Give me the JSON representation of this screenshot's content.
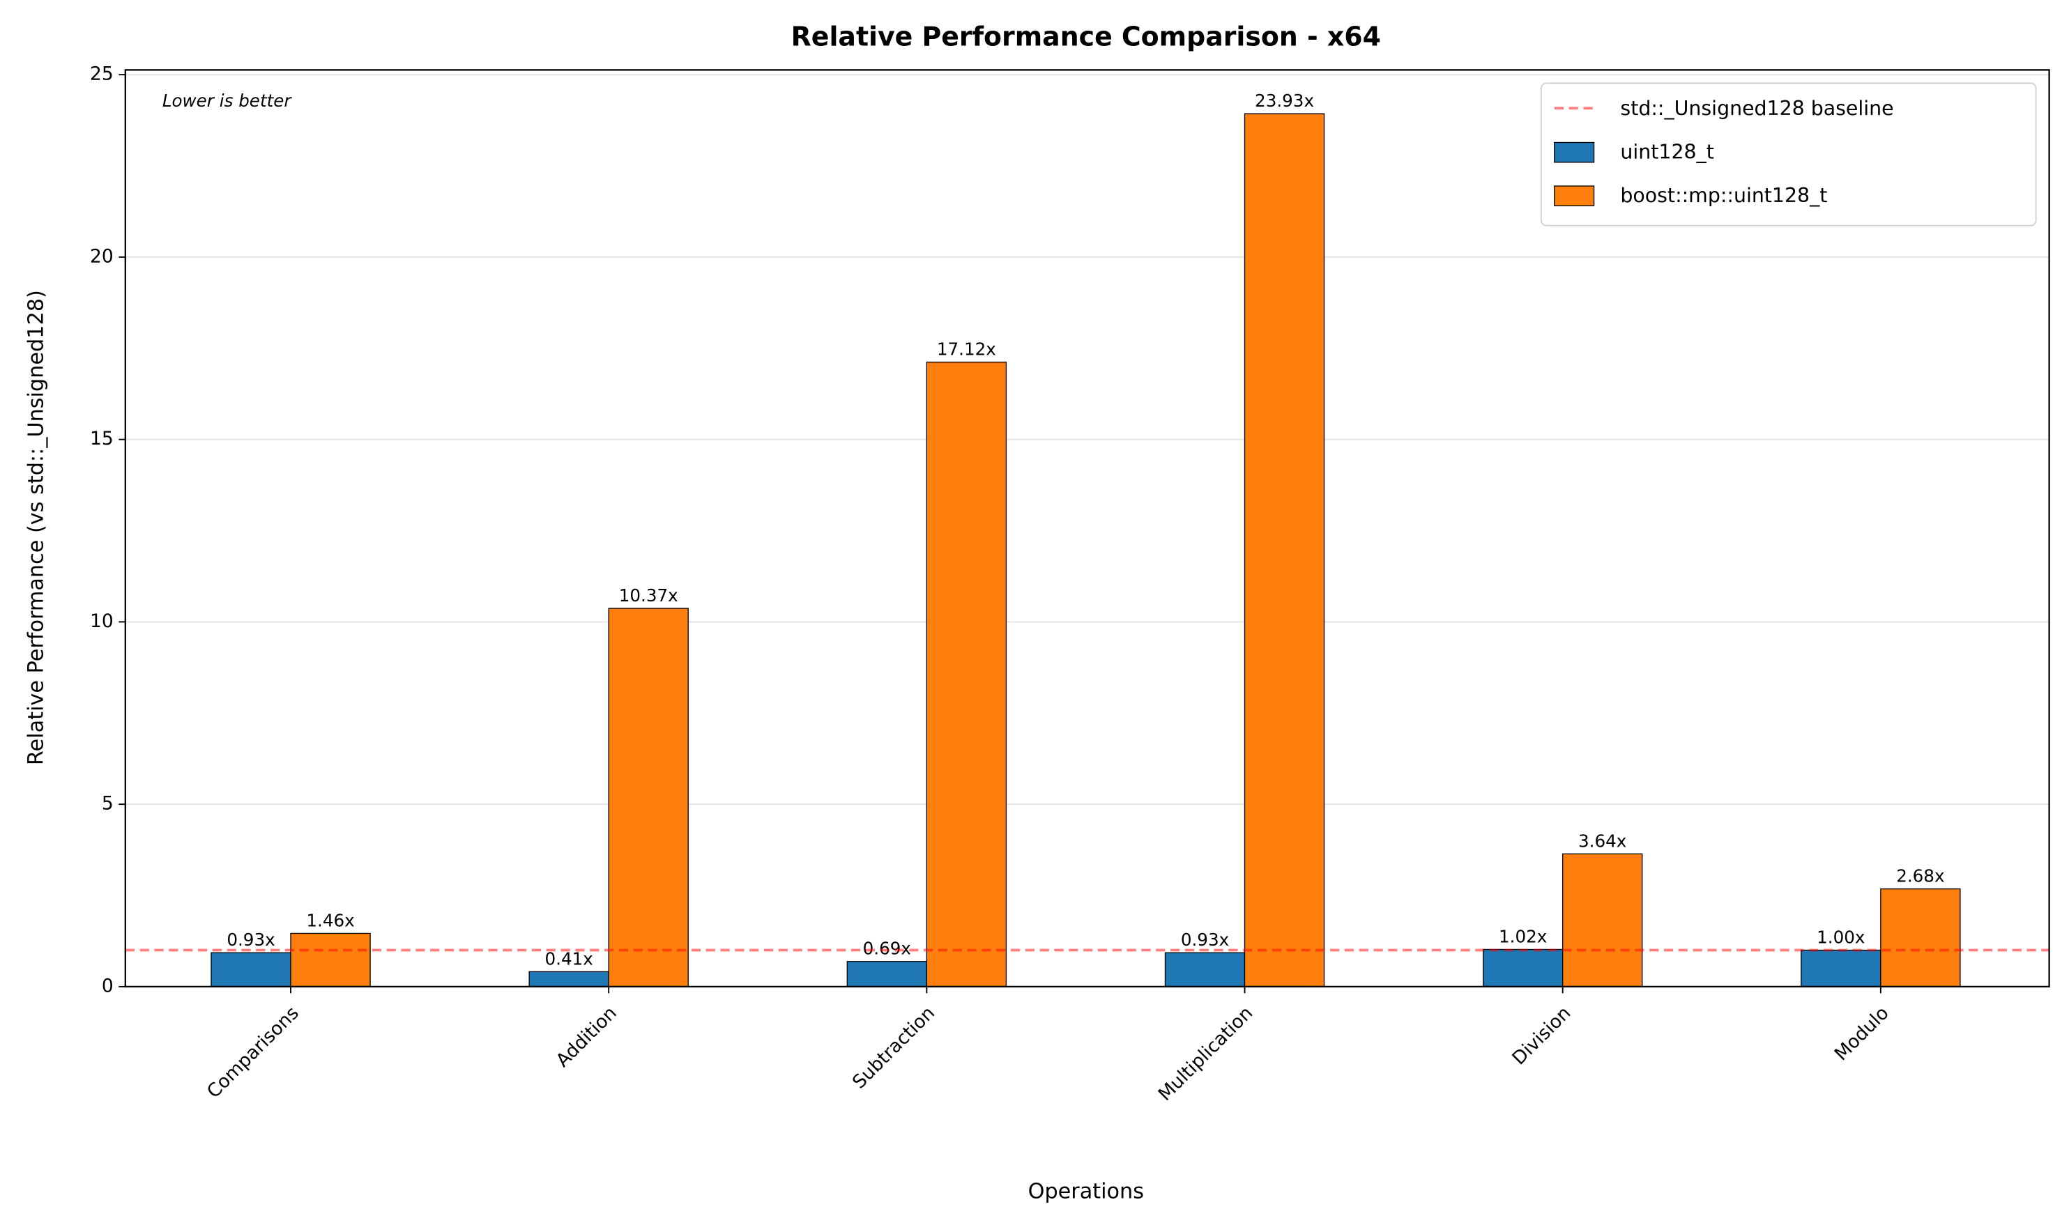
{
  "chart_data": {
    "type": "bar",
    "title": "Relative Performance Comparison - x64",
    "x_label": "Operations",
    "y_label": "Relative Performance (vs std::_Unsigned128)",
    "annotation": "Lower is better",
    "categories": [
      "Comparisons",
      "Addition",
      "Subtraction",
      "Multiplication",
      "Division",
      "Modulo"
    ],
    "series": [
      {
        "name": "uint128_t",
        "color": "#1f77b4",
        "values": [
          0.93,
          0.41,
          0.69,
          0.93,
          1.02,
          1.0
        ],
        "value_labels": [
          "0.93x",
          "0.41x",
          "0.69x",
          "0.93x",
          "1.02x",
          "1.00x"
        ]
      },
      {
        "name": "boost::mp::uint128_t",
        "color": "#ff7f0e",
        "values": [
          1.46,
          10.37,
          17.12,
          23.93,
          3.64,
          2.68
        ],
        "value_labels": [
          "1.46x",
          "10.37x",
          "17.12x",
          "23.93x",
          "3.64x",
          "2.68x"
        ]
      }
    ],
    "reference_line": {
      "name": "std::_Unsigned128 baseline",
      "value": 1,
      "color": "#ff0000"
    },
    "ylim": [
      0,
      25.13
    ],
    "yticks": [
      0,
      5,
      10,
      15,
      20,
      25
    ],
    "grid": true,
    "legend": "upper-right"
  }
}
